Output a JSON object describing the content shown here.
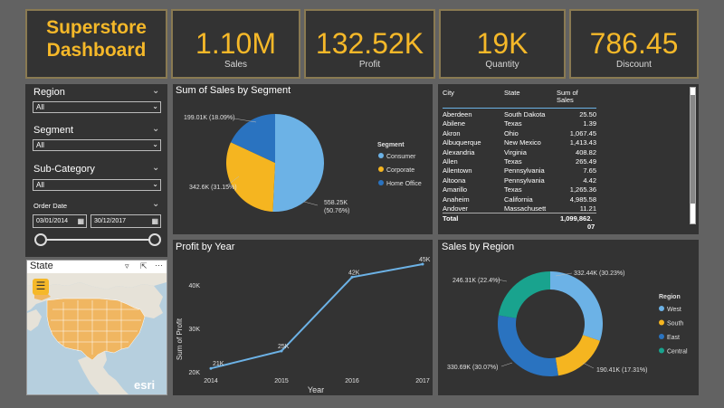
{
  "header": {
    "title_line1": "Superstore",
    "title_line2": "Dashboard"
  },
  "kpis": [
    {
      "value": "1.10M",
      "label": "Sales"
    },
    {
      "value": "132.52K",
      "label": "Profit"
    },
    {
      "value": "19K",
      "label": "Quantity"
    },
    {
      "value": "786.45",
      "label": "Discount"
    }
  ],
  "slicers": {
    "region": {
      "label": "Region",
      "value": "All"
    },
    "segment": {
      "label": "Segment",
      "value": "All"
    },
    "subcategory": {
      "label": "Sub-Category",
      "value": "All"
    },
    "order_date": {
      "label": "Order Date",
      "start": "03/01/2014",
      "end": "30/12/2017"
    }
  },
  "state_map": {
    "title": "State",
    "credit": "esri"
  },
  "segment_chart": {
    "title": "Sum of Sales by Segment",
    "legend_title": "Segment",
    "labels": [
      "199.01K (18.09%)",
      "342.6K (31.15%)",
      "558.25K",
      "(50.76%)"
    ],
    "colors": {
      "consumer": "#6cb2e6",
      "corporate": "#f5b520",
      "home_office": "#2a73c0"
    }
  },
  "table": {
    "headers": [
      "City",
      "State",
      "Sum of",
      "Sales"
    ],
    "rows": [
      [
        "Aberdeen",
        "South Dakota",
        "25.50"
      ],
      [
        "Abilene",
        "Texas",
        "1.39"
      ],
      [
        "Akron",
        "Ohio",
        "1,067.45"
      ],
      [
        "Albuquerque",
        "New Mexico",
        "1,413.43"
      ],
      [
        "Alexandria",
        "Virginia",
        "408.82"
      ],
      [
        "Allen",
        "Texas",
        "265.49"
      ],
      [
        "Allentown",
        "Pennsylvania",
        "7.65"
      ],
      [
        "Altoona",
        "Pennsylvania",
        "4.42"
      ],
      [
        "Amarillo",
        "Texas",
        "1,265.36"
      ],
      [
        "Anaheim",
        "California",
        "4,985.58"
      ],
      [
        "Andover",
        "Massachusett",
        "11.21"
      ]
    ],
    "total_label": "Total",
    "total_value_line1": "1,099,862.",
    "total_value_line2": "07"
  },
  "profit_chart": {
    "title": "Profit by Year",
    "xlabel": "Year",
    "ylabel": "Sum of Profit",
    "y_ticks": [
      "20K",
      "30K",
      "40K"
    ],
    "x_ticks": [
      "2014",
      "2015",
      "2016",
      "2017"
    ]
  },
  "region_chart": {
    "title": "Sales by Region",
    "legend_title": "Region",
    "labels": [
      "332.44K (30.23%)",
      "190.41K (17.31%)",
      "330.69K (30.07%)",
      "246.31K (22.4%)"
    ]
  },
  "chart_data": [
    {
      "type": "pie",
      "title": "Sum of Sales by Segment",
      "categories": [
        "Consumer",
        "Corporate",
        "Home Office"
      ],
      "values": [
        558.25,
        342.6,
        199.01
      ],
      "units": "K"
    },
    {
      "type": "line",
      "title": "Profit by Year",
      "x": [
        2014,
        2015,
        2016,
        2017
      ],
      "values": [
        21,
        25,
        42,
        45
      ],
      "data_labels": [
        "21K",
        "25K",
        "42K",
        "45K"
      ],
      "xlabel": "Year",
      "ylabel": "Sum of Profit",
      "ylim": [
        20,
        45
      ],
      "units": "K"
    },
    {
      "type": "pie",
      "subtype": "donut",
      "title": "Sales by Region",
      "categories": [
        "West",
        "South",
        "East",
        "Central"
      ],
      "values": [
        332.44,
        190.41,
        330.69,
        246.31
      ],
      "units": "K"
    }
  ]
}
